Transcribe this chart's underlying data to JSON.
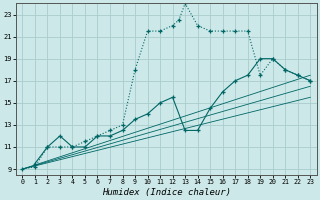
{
  "title": "",
  "xlabel": "Humidex (Indice chaleur)",
  "ylabel": "",
  "background_color": "#cce8e8",
  "grid_color": "#aacccc",
  "line_color": "#006666",
  "xlim": [
    -0.5,
    23.5
  ],
  "ylim": [
    8.5,
    24.0
  ],
  "yticks": [
    9,
    11,
    13,
    15,
    17,
    19,
    21,
    23
  ],
  "xticks": [
    0,
    1,
    2,
    3,
    4,
    5,
    6,
    7,
    8,
    9,
    10,
    11,
    12,
    13,
    14,
    15,
    16,
    17,
    18,
    19,
    20,
    21,
    22,
    23
  ],
  "series1_x": [
    0,
    1,
    2,
    3,
    4,
    5,
    6,
    7,
    8,
    9,
    10,
    11,
    12,
    12.5,
    13,
    14,
    15,
    16,
    17,
    18,
    19,
    20,
    21,
    22,
    23
  ],
  "series1_y": [
    9,
    9.2,
    11,
    11,
    11,
    11.5,
    12,
    12.5,
    13,
    18,
    21.5,
    21.5,
    22,
    22.5,
    24,
    22,
    21.5,
    21.5,
    21.5,
    21.5,
    17.5,
    19,
    18,
    17.5,
    17
  ],
  "series2_x": [
    1,
    2,
    3,
    4,
    5,
    6,
    7,
    8,
    9,
    10,
    11,
    12,
    13,
    14,
    15,
    16,
    17,
    18,
    19,
    20,
    21,
    22,
    23
  ],
  "series2_y": [
    9.5,
    11,
    12,
    11,
    11,
    12,
    12,
    12.5,
    13.5,
    14,
    15,
    15.5,
    12.5,
    12.5,
    14.5,
    16,
    17,
    17.5,
    19,
    19,
    18,
    17.5,
    17
  ],
  "series3_x": [
    0,
    23
  ],
  "series3_y": [
    9,
    16.5
  ],
  "series4_x": [
    0,
    23
  ],
  "series4_y": [
    9,
    17.5
  ],
  "series5_x": [
    0,
    23
  ],
  "series5_y": [
    9,
    15.5
  ]
}
